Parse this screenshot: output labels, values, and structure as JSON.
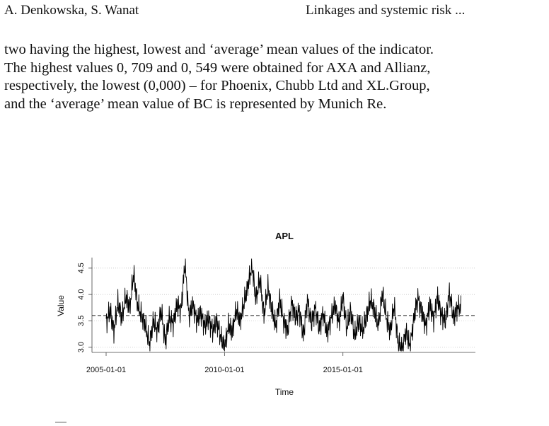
{
  "header": {
    "authors": "A. Denkowska, S. Wanat",
    "title": "Linkages and systemic risk ..."
  },
  "body": {
    "lines": [
      "two having the highest, lowest and ‘average’ mean values of the indicator.",
      "The highest values 0, 709 and 0, 549 were obtained for AXA and Allianz,",
      "respectively, the lowest (0,000) – for Phoenix, Chubb Ltd and XL.Group,",
      "and the ‘average’ mean value of BC is represented by Munich Re."
    ]
  },
  "chart_data": {
    "type": "line",
    "title": "APL",
    "xlabel": "Time",
    "ylabel": "Value",
    "x_ticks": [
      "2005-01-01",
      "2010-01-01",
      "2015-01-01"
    ],
    "y_ticks": [
      "3.0",
      "3.5",
      "4.0",
      "4.5"
    ],
    "ylim": [
      2.9,
      4.7
    ],
    "x_range": [
      "2005-01-01",
      "2019-12-31"
    ],
    "grid": "horizontal dotted",
    "mean_line": 3.6,
    "series": [
      {
        "x": [
          "2005-01",
          "2005-03",
          "2005-05",
          "2005-07",
          "2005-09",
          "2005-11",
          "2006-01",
          "2006-03",
          "2006-05",
          "2006-07",
          "2006-09",
          "2006-11",
          "2007-01",
          "2007-03",
          "2007-05",
          "2007-07",
          "2007-09",
          "2007-11",
          "2008-01",
          "2008-03",
          "2008-05",
          "2008-07",
          "2008-09",
          "2008-11",
          "2009-01",
          "2009-03",
          "2009-05",
          "2009-07",
          "2009-09",
          "2009-11",
          "2010-01",
          "2010-03",
          "2010-05",
          "2010-07",
          "2010-09",
          "2010-11",
          "2011-01",
          "2011-03",
          "2011-05",
          "2011-07",
          "2011-09",
          "2011-11",
          "2012-01",
          "2012-03",
          "2012-05",
          "2012-07",
          "2012-09",
          "2012-11",
          "2013-01",
          "2013-03",
          "2013-05",
          "2013-07",
          "2013-09",
          "2013-11",
          "2014-01",
          "2014-03",
          "2014-05",
          "2014-07",
          "2014-09",
          "2014-11",
          "2015-01",
          "2015-03",
          "2015-05",
          "2015-07",
          "2015-09",
          "2015-11",
          "2016-01",
          "2016-03",
          "2016-05",
          "2016-07",
          "2016-09",
          "2016-11",
          "2017-01",
          "2017-03",
          "2017-05",
          "2017-07",
          "2017-09",
          "2017-11",
          "2018-01",
          "2018-03",
          "2018-05",
          "2018-07",
          "2018-09",
          "2018-11",
          "2019-01",
          "2019-03",
          "2019-05",
          "2019-07",
          "2019-09",
          "2019-11"
        ],
        "values": [
          3.45,
          3.7,
          3.3,
          3.85,
          3.55,
          3.95,
          3.75,
          4.4,
          3.8,
          3.6,
          3.4,
          3.05,
          3.5,
          3.3,
          3.7,
          3.1,
          3.55,
          3.45,
          3.8,
          3.7,
          4.6,
          3.6,
          3.8,
          3.5,
          3.65,
          3.4,
          3.55,
          3.3,
          3.5,
          3.2,
          3.0,
          3.4,
          3.3,
          3.7,
          3.5,
          3.85,
          4.2,
          4.55,
          3.9,
          4.3,
          3.6,
          4.15,
          3.7,
          3.4,
          3.9,
          3.5,
          3.3,
          3.85,
          3.55,
          3.7,
          3.2,
          3.9,
          3.45,
          3.75,
          3.35,
          3.65,
          3.25,
          3.55,
          3.8,
          3.45,
          3.95,
          3.35,
          3.7,
          3.2,
          3.5,
          3.3,
          3.6,
          3.9,
          3.7,
          3.4,
          4.05,
          3.55,
          3.3,
          3.8,
          3.1,
          2.95,
          3.3,
          3.0,
          3.55,
          3.95,
          3.65,
          3.4,
          3.8,
          3.55,
          3.95,
          3.6,
          3.5,
          4.05,
          3.55,
          3.75
        ]
      }
    ]
  }
}
